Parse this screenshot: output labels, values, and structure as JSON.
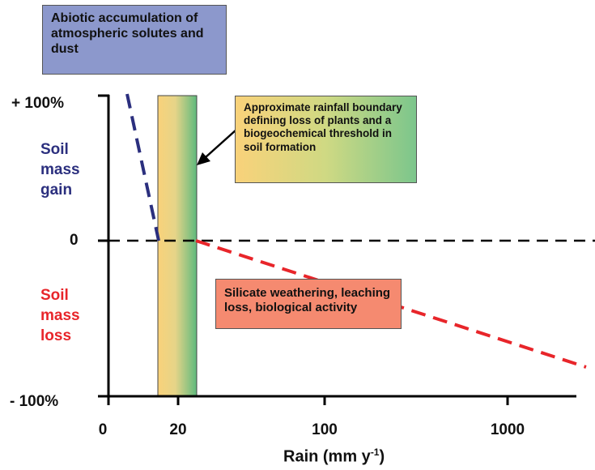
{
  "boxes": {
    "abiotic": "Abiotic accumulation of atmospheric solutes and dust",
    "boundary": "Approximate rainfall boundary defining loss of plants and a biogeochemical threshold in soil formation",
    "silicate": "Silicate weathering, leaching loss, biological activity"
  },
  "y_axis": {
    "top_label": "+ 100%",
    "zero_label": "0",
    "bottom_label": "- 100%",
    "gain_label": "Soil mass gain",
    "loss_label": "Soil mass loss"
  },
  "x_axis": {
    "ticks": [
      "0",
      "20",
      "100",
      "1000"
    ],
    "label_main": "Rain (mm y",
    "label_sup": "-1",
    "label_end": ")"
  },
  "colors": {
    "gain_line": "#2b2f7e",
    "loss_line": "#e8252a",
    "abiotic_box": "#8c98cc",
    "silicate_box": "#f58a70",
    "band_left": "#f9d27a",
    "band_right": "#5fba7d"
  }
}
